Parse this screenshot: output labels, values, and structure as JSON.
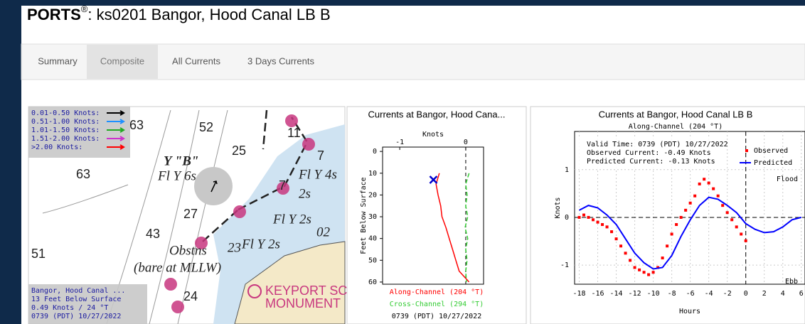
{
  "header": {
    "title_bold": "PORTS",
    "title_mark": "®",
    "title_rest": ": ks0201 Bangor, Hood Canal LB B"
  },
  "tabs": [
    "Summary",
    "Composite",
    "All Currents",
    "3 Days Currents"
  ],
  "active_tab": 1,
  "map": {
    "legend": [
      {
        "label": "0.01-0.50 Knots:",
        "color": "#000000"
      },
      {
        "label": "0.51-1.00 Knots:",
        "color": "#1e90ff"
      },
      {
        "label": "1.01-1.50 Knots:",
        "color": "#22aa22"
      },
      {
        "label": "1.51-2.00 Knots:",
        "color": "#cc33cc"
      },
      {
        "label": ">2.00 Knots:",
        "color": "#ff0000"
      }
    ],
    "labels": [
      "63",
      "52",
      "25",
      "11",
      "7",
      "Y \"B\"",
      "Fl Y 6s",
      "63",
      "Fl Y 4s",
      "7",
      "2s",
      "27",
      "Fl Y 2s",
      "02",
      "43",
      "Obstns",
      "(bare at MLLW)",
      "Fl Y 2s",
      "23",
      "51",
      "24",
      "KEYPORT SC",
      "MONUMENT"
    ],
    "info": [
      "Bangor, Hood Canal ...",
      "13 Feet Below Surface",
      "0.49 Knots / 24 °T",
      "0739 (PDT) 10/27/2022"
    ]
  },
  "chart_data": [
    {
      "type": "profile",
      "title": "Currents at Bangor, Hood Cana...",
      "x_label": "Knots",
      "y_label": "Feet Below Surface",
      "xlim": [
        -1.26,
        0.27
      ],
      "xticks": [
        -1,
        0
      ],
      "ylim": [
        -2,
        61
      ],
      "yticks": [
        0,
        10,
        20,
        30,
        40,
        50,
        60
      ],
      "depths": [
        10,
        15,
        20,
        25,
        30,
        35,
        40,
        45,
        50,
        55,
        60
      ],
      "series": [
        {
          "name": "Along-Channel (204 °T)",
          "color": "#ff0000",
          "values": [
            -0.4,
            -0.45,
            -0.42,
            -0.38,
            -0.36,
            -0.3,
            -0.25,
            -0.2,
            -0.15,
            -0.1,
            0.05
          ]
        },
        {
          "name": "Cross-Channel (294 °T)",
          "color": "#33cc33",
          "values": [
            0.05,
            0.0,
            0.02,
            0.0,
            0.03,
            -0.01,
            0.03,
            0.0,
            0.02,
            0.0,
            0.01
          ]
        }
      ],
      "observed_marker": {
        "depth": 13,
        "value": -0.49,
        "color": "#0000cc"
      },
      "footer": "0739 (PDT) 10/27/2022"
    },
    {
      "type": "timeseries",
      "title": "Currents at Bangor, Hood Canal LB B",
      "subtitle": "Along-Channel (204 °T)",
      "x_label": "Hours",
      "y_label": "Knots",
      "xlim": [
        -18.5,
        6.4
      ],
      "xticks": [
        -18,
        -16,
        -14,
        -12,
        -10,
        -8,
        -6,
        -4,
        -2,
        0,
        2,
        4,
        6
      ],
      "ylim": [
        -1.4,
        1.8
      ],
      "yticks": [
        -1,
        0,
        1
      ],
      "grid": true,
      "annotations": [
        "Valid Time: 0739 (PDT) 10/27/2022",
        "Observed Current: -0.49 Knots",
        "Predicted Current: -0.13 Knots"
      ],
      "flood_label": "Flood",
      "ebb_label": "Ebb",
      "series": [
        {
          "name": "Observed",
          "color": "#ff0000",
          "style": "dots",
          "x": [
            -18,
            -17.5,
            -17,
            -16.5,
            -16,
            -15.5,
            -15,
            -14.5,
            -14,
            -13.5,
            -13,
            -12.5,
            -12,
            -11.5,
            -11,
            -10.5,
            -10,
            -9.5,
            -9,
            -8.5,
            -8,
            -7.5,
            -7,
            -6.5,
            -6,
            -5.5,
            -5,
            -4.5,
            -4,
            -3.5,
            -3,
            -2.5,
            -2,
            -1.5,
            -1,
            -0.5,
            0
          ],
          "values": [
            0.0,
            0.05,
            0.0,
            -0.05,
            -0.1,
            -0.15,
            -0.2,
            -0.3,
            -0.45,
            -0.6,
            -0.75,
            -0.9,
            -1.05,
            -1.1,
            -1.15,
            -1.2,
            -1.15,
            -1.05,
            -0.85,
            -0.6,
            -0.35,
            -0.15,
            0.0,
            0.15,
            0.3,
            0.45,
            0.7,
            0.8,
            0.72,
            0.6,
            0.45,
            0.25,
            0.1,
            -0.05,
            -0.2,
            -0.35,
            -0.49
          ]
        },
        {
          "name": "Predicted",
          "color": "#0000ff",
          "style": "line",
          "x": [
            -18,
            -17,
            -16,
            -15,
            -14,
            -13,
            -12,
            -11,
            -10,
            -9,
            -8,
            -7,
            -6,
            -5,
            -4,
            -3,
            -2,
            -1,
            0,
            1,
            2,
            3,
            4,
            5,
            6
          ],
          "values": [
            0.15,
            0.25,
            0.2,
            0.05,
            -0.15,
            -0.45,
            -0.75,
            -0.95,
            -1.08,
            -1.05,
            -0.8,
            -0.4,
            -0.05,
            0.25,
            0.42,
            0.38,
            0.25,
            0.1,
            -0.13,
            -0.25,
            -0.32,
            -0.3,
            -0.2,
            -0.05,
            0.0
          ]
        }
      ]
    }
  ]
}
